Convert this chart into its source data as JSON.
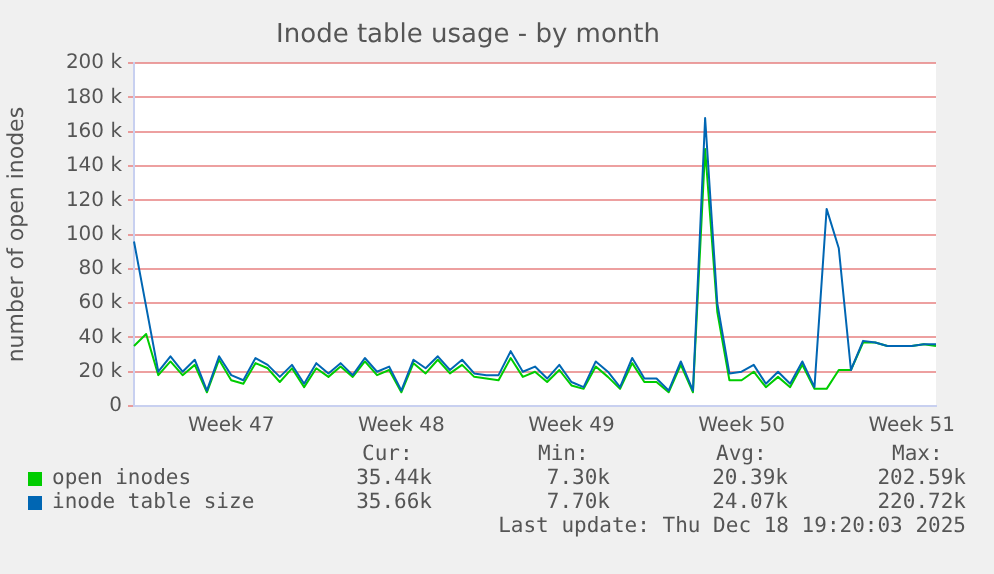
{
  "chart_data": {
    "type": "line",
    "title": "Inode table usage - by month",
    "ylabel": "number of open inodes",
    "categories": [
      null,
      null,
      null,
      null,
      null,
      null,
      null,
      null,
      "Week 47",
      null,
      null,
      null,
      null,
      null,
      null,
      null,
      null,
      null,
      null,
      null,
      null,
      null,
      "Week 48",
      null,
      null,
      null,
      null,
      null,
      null,
      null,
      null,
      null,
      null,
      null,
      null,
      null,
      "Week 49",
      null,
      null,
      null,
      null,
      null,
      null,
      null,
      null,
      null,
      null,
      null,
      null,
      null,
      "Week 50",
      null,
      null,
      null,
      null,
      null,
      null,
      null,
      null,
      null,
      null,
      null,
      null,
      null,
      "Week 51",
      null,
      null
    ],
    "series": [
      {
        "name": "open inodes",
        "color": "#00cc00",
        "values": [
          35,
          42,
          18,
          26,
          18,
          24,
          8,
          27,
          15,
          13,
          25,
          22,
          14,
          22,
          11,
          22,
          17,
          23,
          17,
          26,
          18,
          21,
          8,
          25,
          19,
          27,
          19,
          24,
          17,
          16,
          15,
          28,
          17,
          20,
          14,
          21,
          12,
          10,
          23,
          17,
          10,
          25,
          14,
          14,
          8,
          24,
          8,
          150,
          55,
          15,
          15,
          20,
          11,
          17,
          11,
          24,
          10,
          10,
          21,
          21,
          37,
          37,
          35,
          35,
          35,
          36,
          35
        ]
      },
      {
        "name": "inode table size",
        "color": "#0066b3",
        "values": [
          96,
          58,
          20,
          29,
          20,
          27,
          9,
          29,
          18,
          15,
          28,
          24,
          17,
          24,
          13,
          25,
          19,
          25,
          18,
          28,
          20,
          23,
          9,
          27,
          22,
          29,
          21,
          27,
          19,
          18,
          18,
          32,
          20,
          23,
          16,
          24,
          14,
          11,
          26,
          20,
          11,
          28,
          16,
          16,
          9,
          26,
          9,
          168,
          60,
          19,
          20,
          24,
          13,
          20,
          13,
          26,
          11,
          115,
          92,
          21,
          38,
          37,
          35,
          35,
          35,
          36,
          36
        ]
      }
    ],
    "ylim": [
      0,
      200
    ],
    "yticks": [
      0,
      {
        "value": 20,
        "label": "20 k"
      },
      {
        "value": 40,
        "label": "40 k"
      },
      {
        "value": 60,
        "label": "60 k"
      },
      {
        "value": 80,
        "label": "80 k"
      },
      {
        "value": 100,
        "label": "100 k"
      },
      {
        "value": 120,
        "label": "120 k"
      },
      {
        "value": 140,
        "label": "140 k"
      },
      {
        "value": 160,
        "label": "160 k"
      },
      {
        "value": 180,
        "label": "180 k"
      },
      {
        "value": 200,
        "label": "200 k"
      }
    ],
    "grid": "y",
    "legend": "bottom",
    "marker": "none",
    "line_style": "solid",
    "annotations": [
      "Cur:",
      "Min:",
      "Avg:",
      "Max:",
      "35.44k",
      "7.30k",
      "20.39k",
      "202.59k",
      "35.66k",
      "7.70k",
      "24.07k",
      "220.72k",
      "Last update: Thu Dec 18 19:20:03 2025"
    ]
  }
}
